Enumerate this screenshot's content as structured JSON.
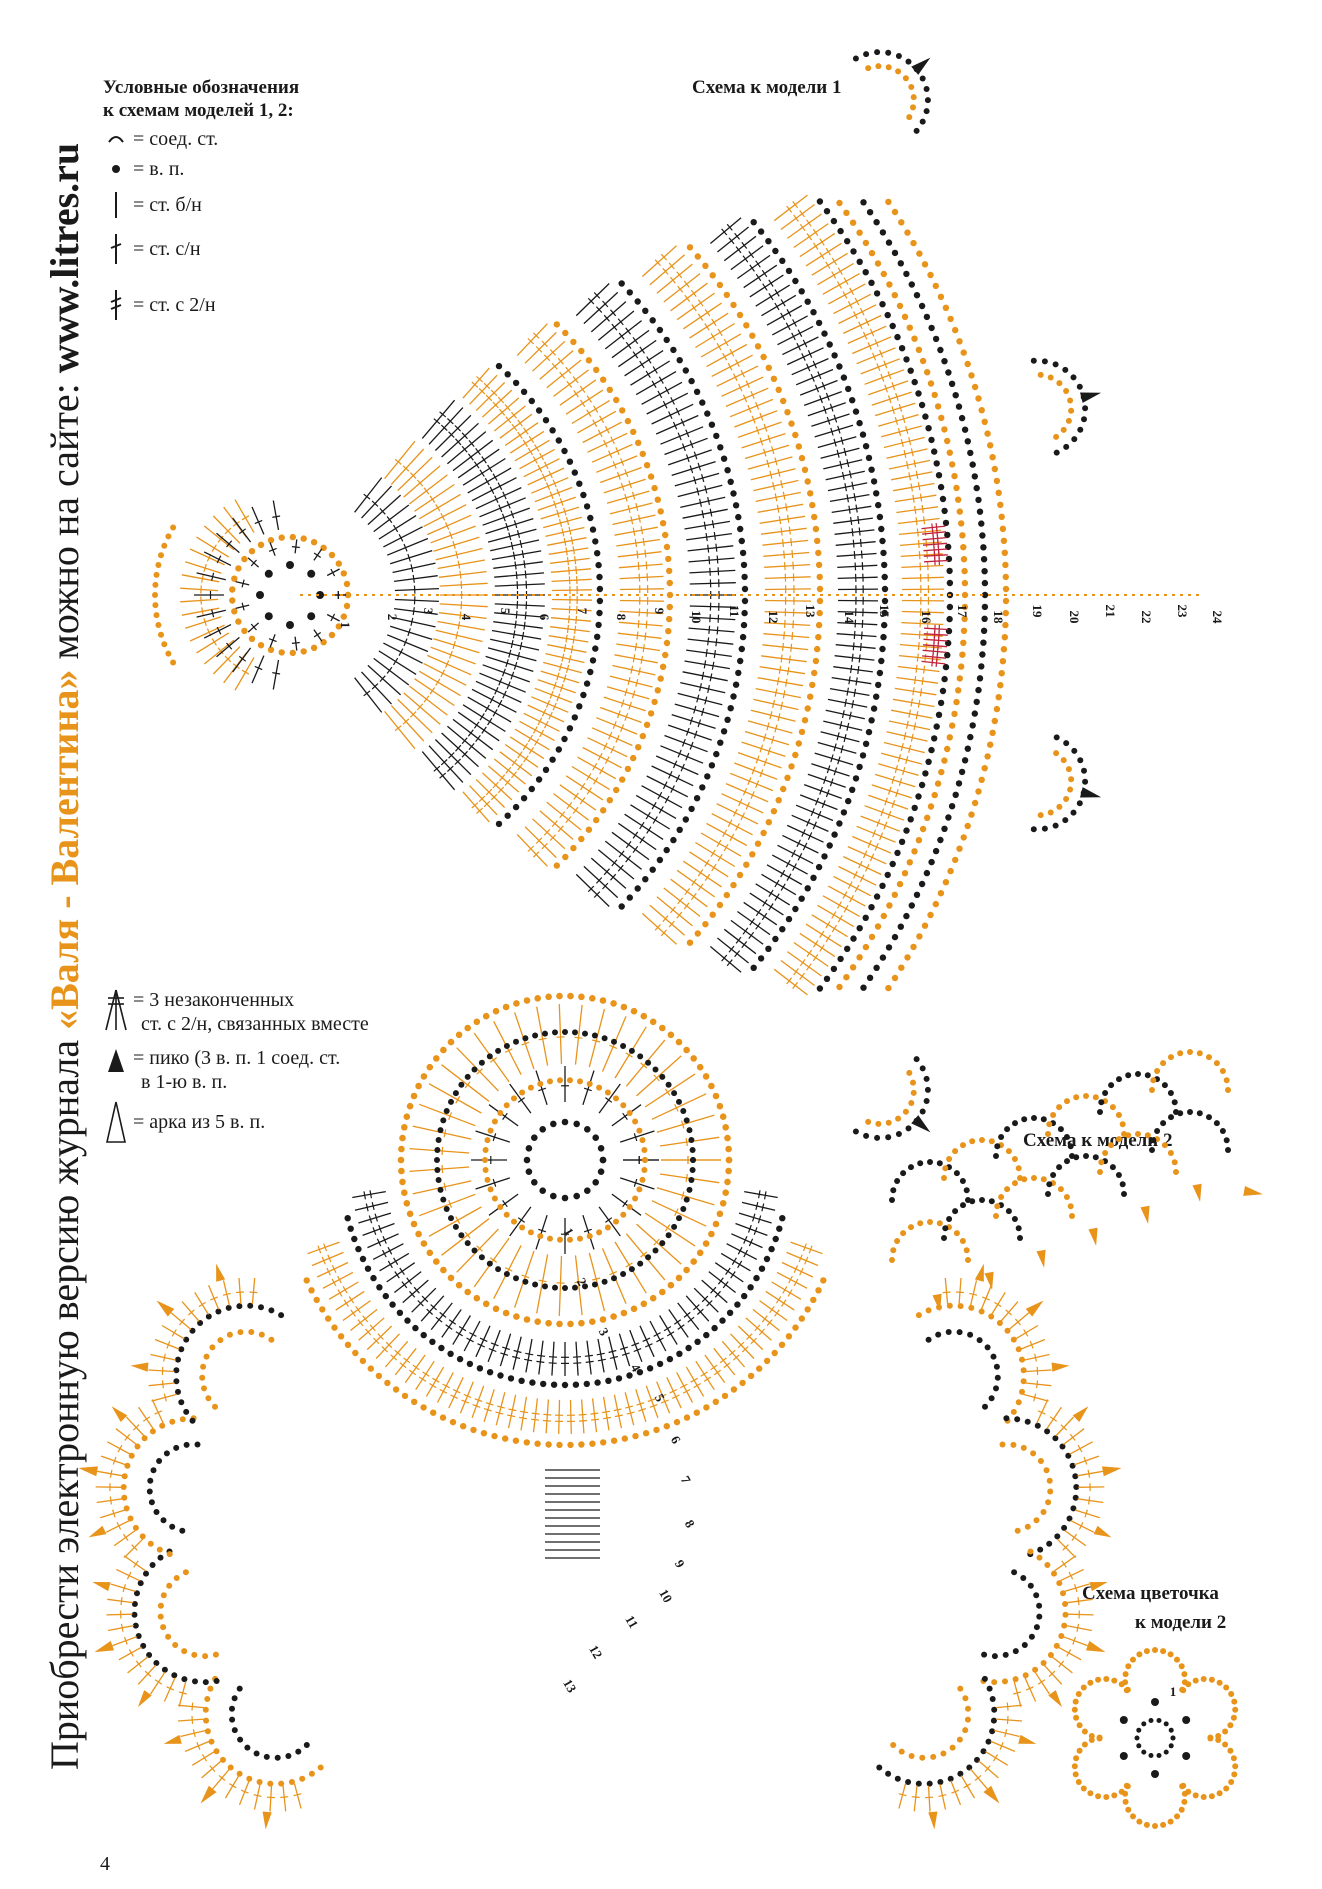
{
  "colors": {
    "orange": "#e8931a",
    "black": "#1a1a1a",
    "red": "#c0223b",
    "background": "#ffffff"
  },
  "side_text": {
    "prefix": "Приобрести электронную версию журнала ",
    "brand": "«Валя - Валентина»",
    "middle": " можно на сайте: ",
    "url": "www.litres.ru"
  },
  "legend": {
    "title_line1": "Условные обозначения",
    "title_line2": "к схемам моделей 1, 2:",
    "items": [
      {
        "icon": "slip-stitch-arc-icon",
        "label": "= соед. ст."
      },
      {
        "icon": "chain-dot-icon",
        "label": "= в. п."
      },
      {
        "icon": "single-crochet-bar-icon",
        "label": "= ст. б/н"
      },
      {
        "icon": "double-crochet-icon",
        "label": "= ст. с/н"
      },
      {
        "icon": "treble-crochet-icon",
        "label": "= ст. с 2/н"
      }
    ],
    "items2": [
      {
        "icon": "cluster-3-treble-icon",
        "label_line1": "= 3 незаконченных",
        "label_line2": "ст. с 2/н, связанных вместе"
      },
      {
        "icon": "picot-triangle-icon",
        "label_line1": "= пико (3 в. п. 1 соед. ст.",
        "label_line2": "в 1-ю в. п."
      },
      {
        "icon": "arch-5-chain-icon",
        "label_line1": "= арка из 5 в. п.",
        "label_line2": ""
      }
    ]
  },
  "scheme1": {
    "title": "Схема к модели 1",
    "row_numbers": [
      "1",
      "2",
      "3",
      "4",
      "5",
      "6",
      "7",
      "8",
      "9",
      "10",
      "11",
      "12",
      "13",
      "14",
      "15",
      "16",
      "17",
      "18",
      "19",
      "20",
      "21",
      "22",
      "23",
      "24"
    ]
  },
  "scheme2": {
    "title": "Схема к модели 2",
    "row_numbers": [
      "1",
      "2",
      "3",
      "4",
      "5",
      "6",
      "7",
      "8",
      "9",
      "10",
      "11",
      "12",
      "13"
    ]
  },
  "flower": {
    "title_line1": "Схема цветочка",
    "title_line2": "к модели 2",
    "row_number": "1"
  },
  "page_number": "4"
}
